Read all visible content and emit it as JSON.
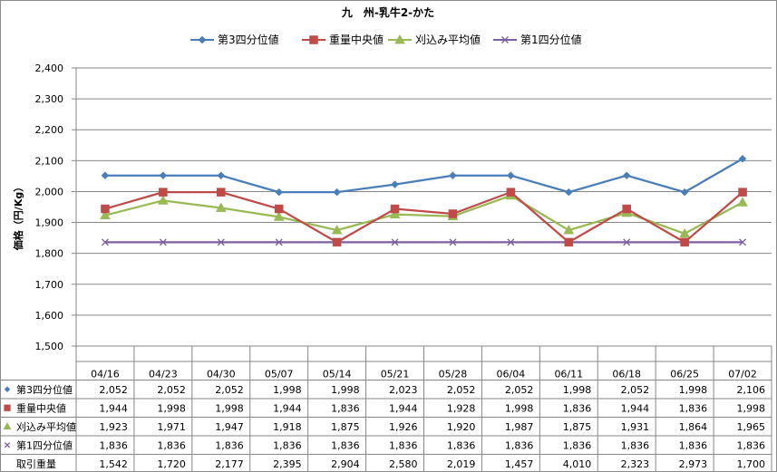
{
  "chart_data": {
    "type": "line",
    "title": "九　州-乳牛2-かた",
    "ylabel": "価格（円/Kg）",
    "ylim": [
      1500,
      2400
    ],
    "ytick_step": 100,
    "yticks": [
      "1,500",
      "1,600",
      "1,700",
      "1,800",
      "1,900",
      "2,000",
      "2,100",
      "2,200",
      "2,300",
      "2,400"
    ],
    "grid": true,
    "legend_position": "top",
    "categories": [
      "04/16",
      "04/23",
      "04/30",
      "05/07",
      "05/14",
      "05/21",
      "05/28",
      "06/04",
      "06/11",
      "06/18",
      "06/25",
      "07/02"
    ],
    "series": [
      {
        "name": "第3四分位値",
        "color": "#4a7ebb",
        "marker": "diamond",
        "values": [
          2052,
          2052,
          2052,
          1998,
          1998,
          2023,
          2052,
          2052,
          1998,
          2052,
          1998,
          2106
        ],
        "labels": [
          "2,052",
          "2,052",
          "2,052",
          "1,998",
          "1,998",
          "2,023",
          "2,052",
          "2,052",
          "1,998",
          "2,052",
          "1,998",
          "2,106"
        ]
      },
      {
        "name": "重量中央値",
        "color": "#be4b48",
        "marker": "square",
        "values": [
          1944,
          1998,
          1998,
          1944,
          1836,
          1944,
          1928,
          1998,
          1836,
          1944,
          1836,
          1998
        ],
        "labels": [
          "1,944",
          "1,998",
          "1,998",
          "1,944",
          "1,836",
          "1,944",
          "1,928",
          "1,998",
          "1,836",
          "1,944",
          "1,836",
          "1,998"
        ]
      },
      {
        "name": "刈込み平均値",
        "color": "#98b954",
        "marker": "triangle",
        "values": [
          1923,
          1971,
          1947,
          1918,
          1875,
          1926,
          1920,
          1987,
          1875,
          1931,
          1864,
          1965
        ],
        "labels": [
          "1,923",
          "1,971",
          "1,947",
          "1,918",
          "1,875",
          "1,926",
          "1,920",
          "1,987",
          "1,875",
          "1,931",
          "1,864",
          "1,965"
        ]
      },
      {
        "name": "第1四分位値",
        "color": "#7d5fa0",
        "marker": "x",
        "values": [
          1836,
          1836,
          1836,
          1836,
          1836,
          1836,
          1836,
          1836,
          1836,
          1836,
          1836,
          1836
        ],
        "labels": [
          "1,836",
          "1,836",
          "1,836",
          "1,836",
          "1,836",
          "1,836",
          "1,836",
          "1,836",
          "1,836",
          "1,836",
          "1,836",
          "1,836"
        ]
      }
    ],
    "extra_rows": [
      {
        "name": "取引重量",
        "labels": [
          "1,542",
          "1,720",
          "2,177",
          "2,395",
          "2,904",
          "2,580",
          "2,019",
          "1,457",
          "4,010",
          "2,323",
          "2,973",
          "1,700"
        ]
      }
    ]
  }
}
